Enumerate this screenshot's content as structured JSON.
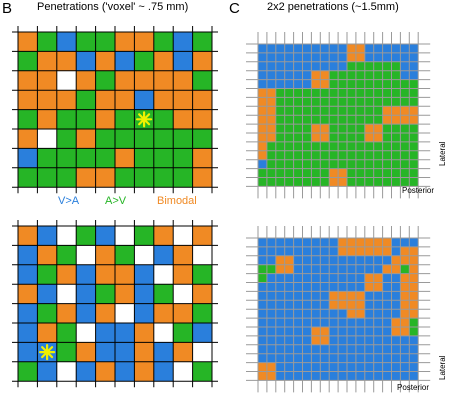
{
  "colors": {
    "blue": "#2a7fdc",
    "green": "#26b526",
    "orange": "#f08a24",
    "white": "#ffffff",
    "line_left": "#000000",
    "line_right": "#9a9a9a",
    "star": "#f0f000"
  },
  "panel_b": {
    "letter": "B",
    "title": "Penetrations ('voxel' ~ .75 mm)"
  },
  "panel_c": {
    "letter": "C",
    "title": "2x2 penetrations (~1.5mm)"
  },
  "legend": {
    "va": "V>A",
    "av": "A>V",
    "bimodal": "Bimodal"
  },
  "axes": {
    "lateral": "Lateral",
    "posterior": "Posterior"
  },
  "grid_b_top": {
    "rows": [
      "OGBGGOOGBG",
      "GOOBOBGOBO",
      "OOWOGOOOOG",
      "OOOGOOBOOO",
      "GOGGOGGGOO",
      "OWGOGGGGGG",
      "BGGGGOGGGO",
      "GGGOOGGGGO"
    ],
    "star": {
      "row": 4,
      "col": 6
    }
  },
  "grid_b_bottom": {
    "rows": [
      "OBWGBWGOWO",
      "BOGWOGWBOW",
      "BGOBOOBWOG",
      "OBWBGOBGWO",
      "BGOBOWBOOG",
      "BOGWBBOWGB",
      "BBGOBBOBOW",
      "GBWBOBOBWG"
    ],
    "star": {
      "row": 6,
      "col": 1
    }
  },
  "grid_c_top": {
    "rows": [
      "BBBBBBBBBBOOBBBBBB",
      "BBBBBBBBBBOOBBBBBB",
      "BBBBBBBBBBGGGGGGBB",
      "BBBBBBOOGGGGGGGGBB",
      "BBBBBBOOGGGGGGGGGG",
      "OOGGGGGGGGGGGGGGGG",
      "OOGGGGGGGGGGGGGGGG",
      "OOGGGGGGGGGGGGOOOO",
      "OOGGGGGGGGGGGGOOOO",
      "OOGGGGOOGGGGOOGGGG",
      "OOGGGGOOGGGGOOGGGG",
      "OGGGGGGGGGGGGGGGGG",
      "OGGGGGGGGGGGGGGGGG",
      "BGGGGGGGGGGGGGGGGG",
      "GGGGGGGGOOGGGGGGGG",
      "GGGGGGGGOOGGGGGGGG"
    ]
  },
  "grid_c_bottom": {
    "rows": [
      "BBBBBBBBBOOOOOOBBB",
      "BBBBBBBBBOOOOOOBOO",
      "BBOOBBBBBBBBBBBOOO",
      "GGOOBBBBBBBBBBOOGO",
      "GBBBBBBBBBBBOOBBOO",
      "BBBBBBBBBBBBOOBBOO",
      "BBBBBBBBOOOOBBBBOO",
      "BBBBBBBBOOOOBBBBOO",
      "BBBBBBBBBBOOBBBBOO",
      "BBBBBBBBBBBBBBBOOG",
      "BBBBBBOOBBBBBBBOOG",
      "BBBBBBOOBBBBBBBBBB",
      "BBBBBBBBBBBBBBBBBB",
      "BBBBBBBBBBBBBBBBBB",
      "OOBBBBBBBBBBBBBBBB",
      "OOBBBBBBBBBBBBBBBB"
    ]
  }
}
